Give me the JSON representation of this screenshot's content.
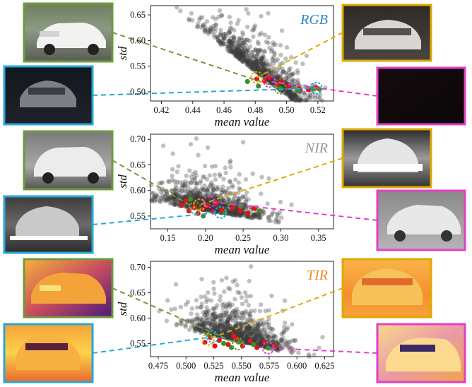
{
  "colors": {
    "green": "#6e9a3c",
    "blue": "#2aa6d6",
    "orange": "#e0a800",
    "magenta": "#e040c8",
    "rgb_label": "#2f86c5",
    "nir_label": "#9a9a9a",
    "tir_label": "#ee8a2a",
    "scatter": "#3a3a3a",
    "red_points": "#e21414",
    "green_points": "#3a8f2a"
  },
  "thumbnails": {
    "rgb_green": "daytime white SUV photo",
    "rgb_blue": "dark night SUV rear photo",
    "rgb_orange": "dim evening SUV rear photo",
    "rgb_magenta": "nearly black photo",
    "nir_green": "grayscale daytime SUV",
    "nir_blue": "NIR night SUV rear with bright glare",
    "nir_orange": "NIR SUV rear with glare",
    "nir_magenta": "NIR SUV side view",
    "tir_green": "thermal SUV purple-yellow",
    "tir_blue": "thermal SUV rear yellow-orange",
    "tir_orange": "thermal SUV rear orange",
    "tir_magenta": "thermal SUV front orange"
  },
  "chart_data": [
    {
      "type": "scatter",
      "title": "RGB",
      "xlabel": "mean value",
      "ylabel": "std",
      "xlim": [
        0.413,
        0.53
      ],
      "ylim": [
        0.482,
        0.668
      ],
      "xticks": [
        "0.42",
        "0.44",
        "0.46",
        "0.48",
        "0.50",
        "0.52"
      ],
      "xtick_values": [
        0.42,
        0.44,
        0.46,
        0.48,
        0.5,
        0.52
      ],
      "yticks": [
        "0.65",
        "0.60",
        "0.55",
        "0.50"
      ],
      "ytick_values": [
        0.65,
        0.6,
        0.55,
        0.5
      ],
      "cloud": {
        "x_mean": 0.487,
        "x_sd": 0.02,
        "trend_slope": -2.3,
        "trend_x0": 0.487,
        "trend_y0": 0.53,
        "noise": 0.016
      },
      "red_points": [
        [
          0.481,
          0.525
        ],
        [
          0.489,
          0.528
        ],
        [
          0.494,
          0.515
        ],
        [
          0.501,
          0.51
        ],
        [
          0.508,
          0.506
        ],
        [
          0.514,
          0.504
        ],
        [
          0.519,
          0.508
        ],
        [
          0.486,
          0.521
        ],
        [
          0.497,
          0.52
        ]
      ],
      "green_points": [
        [
          0.482,
          0.511
        ],
        [
          0.496,
          0.506
        ],
        [
          0.507,
          0.502
        ],
        [
          0.517,
          0.506
        ],
        [
          0.521,
          0.505
        ],
        [
          0.475,
          0.52
        ]
      ],
      "highlights": {
        "orange": [
          0.481,
          0.528
        ],
        "magenta": [
          0.489,
          0.52
        ],
        "blue": [
          0.519,
          0.507
        ],
        "green": [
          0.496,
          0.507
        ]
      }
    },
    {
      "type": "scatter",
      "title": "NIR",
      "xlabel": "mean value",
      "ylabel": "std",
      "xlim": [
        0.127,
        0.37
      ],
      "ylim": [
        0.525,
        0.71
      ],
      "xticks": [
        "0.15",
        "0.20",
        "0.25",
        "0.30",
        "0.35"
      ],
      "xtick_values": [
        0.15,
        0.2,
        0.25,
        0.3,
        0.35
      ],
      "yticks": [
        "0.70",
        "0.65",
        "0.60",
        "0.55"
      ],
      "ytick_values": [
        0.7,
        0.65,
        0.6,
        0.55
      ],
      "cloud": {
        "x_mean": 0.205,
        "x_sd": 0.036,
        "trend_slope": -0.25,
        "trend_x0": 0.2,
        "trend_y0": 0.567,
        "noise": 0.015
      },
      "red_points": [
        [
          0.168,
          0.572
        ],
        [
          0.178,
          0.56
        ],
        [
          0.186,
          0.568
        ],
        [
          0.19,
          0.555
        ],
        [
          0.196,
          0.563
        ],
        [
          0.202,
          0.571
        ],
        [
          0.21,
          0.558
        ],
        [
          0.222,
          0.562
        ],
        [
          0.236,
          0.566
        ],
        [
          0.246,
          0.56
        ],
        [
          0.256,
          0.556
        ],
        [
          0.265,
          0.565
        ],
        [
          0.174,
          0.58
        ],
        [
          0.214,
          0.575
        ]
      ],
      "green_points": [
        [
          0.18,
          0.583
        ],
        [
          0.197,
          0.55
        ],
        [
          0.226,
          0.556
        ],
        [
          0.247,
          0.569
        ],
        [
          0.272,
          0.56
        ],
        [
          0.231,
          0.574
        ]
      ],
      "highlights": {
        "orange": [
          0.192,
          0.572
        ],
        "magenta": [
          0.205,
          0.578
        ],
        "blue": [
          0.22,
          0.557
        ],
        "green": [
          0.186,
          0.566
        ]
      }
    },
    {
      "type": "scatter",
      "title": "TIR",
      "xlabel": "mean value",
      "ylabel": "std",
      "xlim": [
        0.468,
        0.633
      ],
      "ylim": [
        0.524,
        0.712
      ],
      "xticks": [
        "0.475",
        "0.500",
        "0.525",
        "0.550",
        "0.575",
        "0.600",
        "0.625"
      ],
      "xtick_values": [
        0.475,
        0.5,
        0.525,
        0.55,
        0.575,
        0.6,
        0.625
      ],
      "yticks": [
        "0.70",
        "0.65",
        "0.60",
        "0.55"
      ],
      "ytick_values": [
        0.7,
        0.65,
        0.6,
        0.55
      ],
      "cloud": {
        "x_mean": 0.547,
        "x_sd": 0.022,
        "trend_slope": -0.5,
        "trend_x0": 0.55,
        "trend_y0": 0.56,
        "noise": 0.018
      },
      "red_points": [
        [
          0.517,
          0.552
        ],
        [
          0.522,
          0.562
        ],
        [
          0.53,
          0.556
        ],
        [
          0.538,
          0.548
        ],
        [
          0.546,
          0.559
        ],
        [
          0.551,
          0.545
        ],
        [
          0.558,
          0.555
        ],
        [
          0.564,
          0.542
        ],
        [
          0.571,
          0.552
        ],
        [
          0.58,
          0.545
        ],
        [
          0.526,
          0.545
        ],
        [
          0.543,
          0.565
        ]
      ],
      "green_points": [
        [
          0.52,
          0.568
        ],
        [
          0.534,
          0.55
        ],
        [
          0.548,
          0.553
        ],
        [
          0.561,
          0.548
        ],
        [
          0.574,
          0.541
        ],
        [
          0.541,
          0.542
        ]
      ],
      "highlights": {
        "orange": [
          0.52,
          0.558
        ],
        "magenta": [
          0.574,
          0.541
        ],
        "blue": [
          0.524,
          0.563
        ],
        "green": [
          0.547,
          0.549
        ]
      }
    }
  ]
}
